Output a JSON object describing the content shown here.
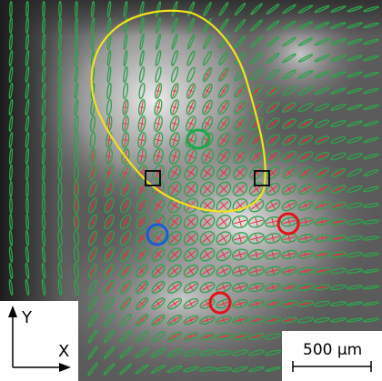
{
  "axes": {
    "y_label": "Y",
    "x_label": "X"
  },
  "scale_bar": {
    "label": "500 μm"
  },
  "colors": {
    "ellipse_outline": "#2fa24a",
    "major_axis": "#e8323c",
    "boundary": "#f2e21a",
    "marker_green": "#1aa84a",
    "marker_blue": "#1d5bd6",
    "marker_red": "#e3131b",
    "square_marker": "#111111"
  },
  "annotations": {
    "circles": [
      {
        "name": "green-circle-marker",
        "color": "#1aa84a"
      },
      {
        "name": "blue-circle-marker",
        "color": "#1d5bd6"
      },
      {
        "name": "red-circle-marker-1",
        "color": "#e3131b"
      },
      {
        "name": "red-circle-marker-2",
        "color": "#e3131b"
      }
    ],
    "squares": [
      {
        "name": "square-marker-left"
      },
      {
        "name": "square-marker-right"
      }
    ]
  }
}
